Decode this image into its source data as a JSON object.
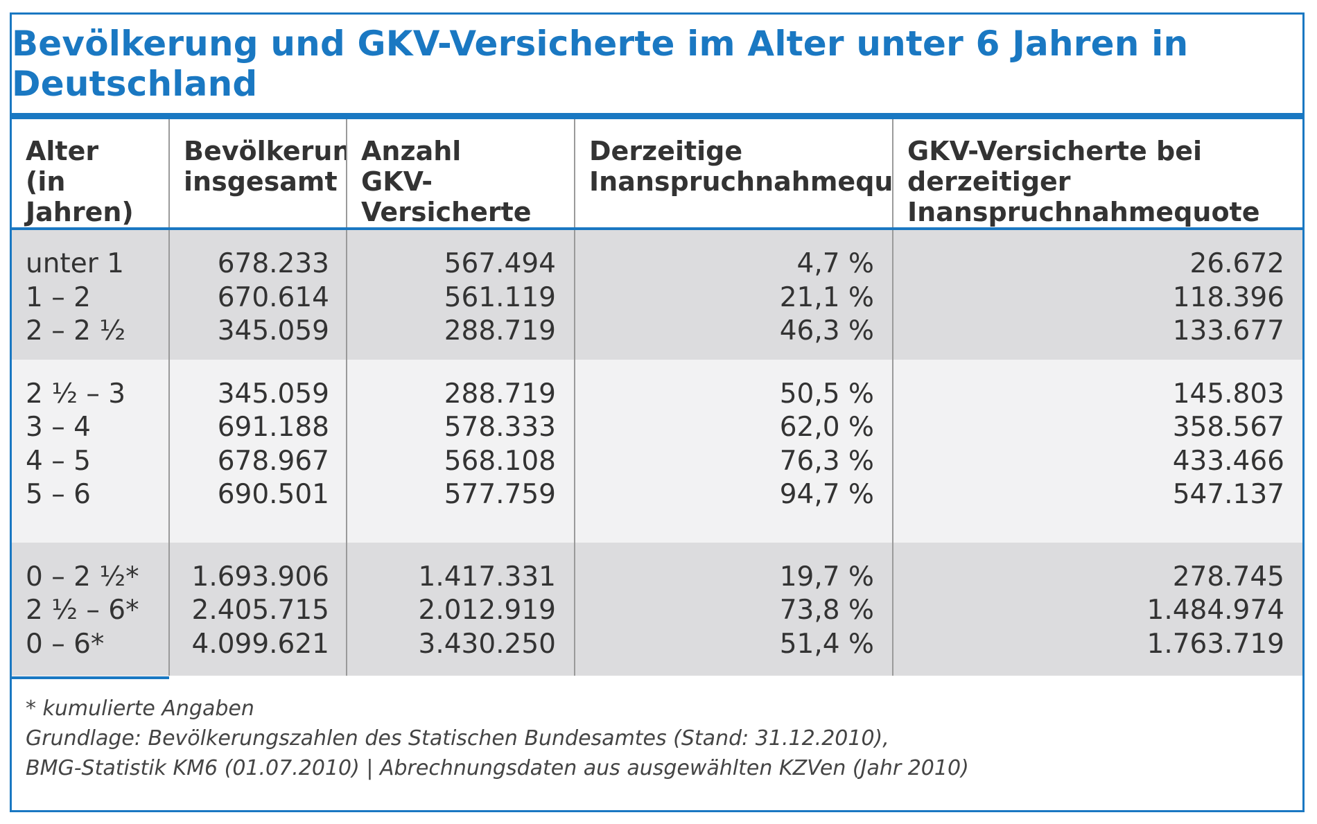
{
  "title": "Bevölkerung und GKV-Versicherte im Alter unter 6 Jahren in Deutschland",
  "colors": {
    "accent": "#1a78c2",
    "group_dark": "#dcdcde",
    "group_light": "#f2f2f3"
  },
  "table": {
    "headers": [
      "Alter\n(in Jahren)",
      "Bevölkerung\ninsgesamt",
      "Anzahl\nGKV-Versicherte",
      "Derzeitige\nInanspruchnahmequote",
      "GKV-Versicherte bei derzeitiger\nInanspruchnahmequote"
    ],
    "groups": [
      {
        "rows": [
          [
            "unter 1",
            "678.233",
            "567.494",
            "4,7 %",
            "26.672"
          ],
          [
            "1 – 2",
            "670.614",
            "561.119",
            "21,1 %",
            "118.396"
          ],
          [
            "2 – 2 ½",
            "345.059",
            "288.719",
            "46,3 %",
            "133.677"
          ]
        ]
      },
      {
        "rows": [
          [
            "2 ½ – 3",
            "345.059",
            "288.719",
            "50,5 %",
            "145.803"
          ],
          [
            "3 – 4",
            "691.188",
            "578.333",
            "62,0 %",
            "358.567"
          ],
          [
            "4 – 5",
            "678.967",
            "568.108",
            "76,3 %",
            "433.466"
          ],
          [
            "5 – 6",
            "690.501",
            "577.759",
            "94,7 %",
            "547.137"
          ]
        ]
      },
      {
        "rows": [
          [
            "0 – 2 ½*",
            "1.693.906",
            "1.417.331",
            "19,7 %",
            "278.745"
          ],
          [
            "2 ½ – 6*",
            "2.405.715",
            "2.012.919",
            "73,8 %",
            "1.484.974"
          ],
          [
            "0 – 6*",
            "4.099.621",
            "3.430.250",
            "51,4 %",
            "1.763.719"
          ]
        ]
      }
    ]
  },
  "footnotes": [
    "* kumulierte Angaben",
    "Grundlage: Bevölkerungszahlen des Statischen Bundesamtes (Stand: 31.12.2010),",
    "BMG-Statistik KM6 (01.07.2010) | Abrechnungsdaten aus ausgewählten KZVen (Jahr 2010)"
  ]
}
